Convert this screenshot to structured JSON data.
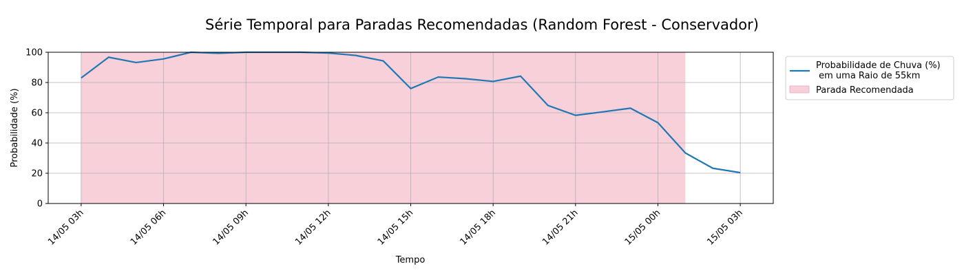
{
  "chart_data": {
    "type": "line",
    "title": "Série Temporal para Paradas Recomendadas (Random Forest - Conservador)",
    "xlabel": "Tempo",
    "ylabel": "Probabilidade (%)",
    "ylim": [
      0,
      100
    ],
    "yticks": [
      0,
      20,
      40,
      60,
      80,
      100
    ],
    "x_unit": "hour",
    "xlim": [
      "14/05 01:48",
      "15/05 04:12"
    ],
    "xticks": [
      {
        "t": "14/05 03:00",
        "label": "14/05 03h"
      },
      {
        "t": "14/05 06:00",
        "label": "14/05 06h"
      },
      {
        "t": "14/05 09:00",
        "label": "14/05 09h"
      },
      {
        "t": "14/05 12:00",
        "label": "14/05 12h"
      },
      {
        "t": "14/05 15:00",
        "label": "14/05 15h"
      },
      {
        "t": "14/05 18:00",
        "label": "14/05 18h"
      },
      {
        "t": "14/05 21:00",
        "label": "14/05 21h"
      },
      {
        "t": "15/05 00:00",
        "label": "15/05 00h"
      },
      {
        "t": "15/05 03:00",
        "label": "15/05 03h"
      }
    ],
    "grid": true,
    "legend_position": "outside-top-right",
    "series": [
      {
        "name": "Probabilidade de Chuva (%)\n em uma Raio de 55km",
        "color": "#1f77b4",
        "x": [
          "14/05 03:00",
          "14/05 04:00",
          "14/05 05:00",
          "14/05 06:00",
          "14/05 07:00",
          "14/05 08:00",
          "14/05 09:00",
          "14/05 10:00",
          "14/05 11:00",
          "14/05 12:00",
          "14/05 13:00",
          "14/05 14:00",
          "14/05 15:00",
          "14/05 16:00",
          "14/05 17:00",
          "14/05 18:00",
          "14/05 19:00",
          "14/05 20:00",
          "14/05 21:00",
          "14/05 22:00",
          "14/05 23:00",
          "15/05 00:00",
          "15/05 01:00",
          "15/05 02:00",
          "15/05 03:00"
        ],
        "values": [
          83,
          96.7,
          93.2,
          95.6,
          100,
          99.3,
          100,
          100,
          100,
          99.5,
          97.9,
          94.3,
          76,
          83.6,
          82.5,
          80.7,
          84.2,
          64.8,
          58.3,
          60.6,
          63,
          53.4,
          33.4,
          23.3,
          20.4
        ]
      }
    ],
    "shaded_region": {
      "name": "Parada Recomendada",
      "color": "#f7d0da",
      "x_start": "14/05 03:00",
      "x_end": "15/05 01:00"
    }
  }
}
